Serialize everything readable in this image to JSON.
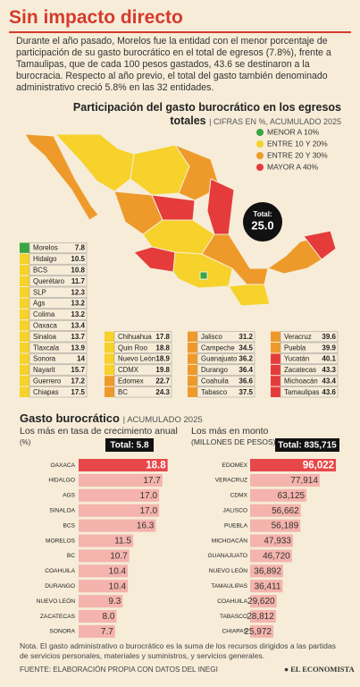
{
  "header": {
    "title": "Sin impacto directo",
    "text": "Durante el año pasado, Morelos fue la entidad con el menor porcentaje de participación de su gasto burocrático en el total de egresos (7.8%), frente a Tamaulipas, que de cada 100 pesos gastados, 43.6 se destinaron a la burocracia. Respecto al año previo, el total del gasto también denominado administrativo creció 5.8% en las 32 entidades."
  },
  "map": {
    "title": "Participación del gasto burocrático en los egresos totales",
    "subtitle": "CIFRAS EN %, ACUMULADO 2025",
    "legend": [
      {
        "label": "MENOR A 10%",
        "color": "#3aa544"
      },
      {
        "label": "ENTRE 10 Y 20%",
        "color": "#f6d22a"
      },
      {
        "label": "ENTRE 20 Y 30%",
        "color": "#ee9a2a"
      },
      {
        "label": "MAYOR A 40%",
        "color": "#e53b3b"
      }
    ],
    "total_label": "Total:",
    "total_value": {
      "value": 25,
      "label": "25.0"
    },
    "columns": [
      [
        {
          "name": "Morelos",
          "value": 7.8,
          "color": "#3aa544"
        },
        {
          "name": "Hidalgo",
          "value": 10.5,
          "color": "#f6d22a"
        },
        {
          "name": "BCS",
          "value": 10.8,
          "color": "#f6d22a"
        },
        {
          "name": "Querétaro",
          "value": 11.7,
          "color": "#f6d22a"
        },
        {
          "name": "SLP",
          "value": 12.3,
          "color": "#f6d22a"
        },
        {
          "name": "Ags",
          "value": 13.2,
          "color": "#f6d22a"
        },
        {
          "name": "Colima",
          "value": 13.2,
          "color": "#f6d22a"
        },
        {
          "name": "Oaxaca",
          "value": 13.4,
          "color": "#f6d22a"
        },
        {
          "name": "Sinaloa",
          "value": 13.7,
          "color": "#f6d22a"
        },
        {
          "name": "Tlaxcala",
          "value": 13.9,
          "color": "#f6d22a"
        },
        {
          "name": "Sonora",
          "value": 14,
          "color": "#f6d22a"
        },
        {
          "name": "Nayarit",
          "value": 15.7,
          "color": "#f6d22a"
        },
        {
          "name": "Guerrero",
          "value": 17.2,
          "color": "#f6d22a"
        },
        {
          "name": "Chiapas",
          "value": 17.5,
          "color": "#f6d22a"
        }
      ],
      [
        {
          "name": "Chihuahua",
          "value": 17.8,
          "color": "#f6d22a"
        },
        {
          "name": "Quin Roo",
          "value": 18.8,
          "color": "#f6d22a"
        },
        {
          "name": "Nuevo León",
          "value": 18.9,
          "color": "#f6d22a"
        },
        {
          "name": "CDMX",
          "value": 19.8,
          "color": "#f6d22a"
        },
        {
          "name": "Edomex",
          "value": 22.7,
          "color": "#ee9a2a"
        },
        {
          "name": "BC",
          "value": 24.3,
          "color": "#ee9a2a"
        }
      ],
      [
        {
          "name": "Jalisco",
          "value": 31.2,
          "color": "#ee9a2a"
        },
        {
          "name": "Campeche",
          "value": 34.5,
          "color": "#ee9a2a"
        },
        {
          "name": "Guanajuato",
          "value": 36.2,
          "color": "#ee9a2a"
        },
        {
          "name": "Durango",
          "value": 36.4,
          "color": "#ee9a2a"
        },
        {
          "name": "Coahuila",
          "value": 36.6,
          "color": "#ee9a2a"
        },
        {
          "name": "Tabasco",
          "value": 37.5,
          "color": "#ee9a2a"
        }
      ],
      [
        {
          "name": "Veracruz",
          "value": 39.6,
          "color": "#ee9a2a"
        },
        {
          "name": "Puebla",
          "value": 39.9,
          "color": "#ee9a2a"
        },
        {
          "name": "Yucatán",
          "value": 40.1,
          "color": "#e53b3b"
        },
        {
          "name": "Zacatecas",
          "value": 43.3,
          "color": "#e53b3b"
        },
        {
          "name": "Michoacán",
          "value": 43.4,
          "color": "#e53b3b"
        },
        {
          "name": "Tamaulipas",
          "value": 43.6,
          "color": "#e53b3b"
        }
      ]
    ]
  },
  "section": {
    "title": "Gasto burocrático",
    "subtitle": "ACUMULADO 2025"
  },
  "chart_data": [
    {
      "type": "bar",
      "title": "Los más en tasa de crecimiento anual",
      "unit": "(%)",
      "total": "Total: 5.8",
      "orientation": "horizontal",
      "categories": [
        "OAXACA",
        "HIDALGO",
        "AGS",
        "SINALOA",
        "BCS",
        "MORELOS",
        "BC",
        "COAHUILA",
        "DURANGO",
        "NUEVO LEÓN",
        "ZACATECAS",
        "SONORA"
      ],
      "values": [
        18.8,
        17.7,
        17.0,
        17.0,
        16.3,
        11.5,
        10.7,
        10.4,
        10.4,
        9.3,
        8.0,
        7.7
      ],
      "value_labels": [
        "18.8",
        "17.7",
        "17.0",
        "17.0",
        "16.3",
        "11.5",
        "10.7",
        "10.4",
        "10.4",
        "9.3",
        "8.0",
        "7.7"
      ],
      "colors": [
        "#e8474a",
        "#f4b3ac",
        "#f4b3ac",
        "#f4b3ac",
        "#f4b3ac",
        "#f4b3ac",
        "#f4b3ac",
        "#f4b3ac",
        "#f4b3ac",
        "#f4b3ac",
        "#f4b3ac",
        "#f4b3ac"
      ],
      "xlim": [
        0,
        20
      ]
    },
    {
      "type": "bar",
      "title": "Los más en monto",
      "unit": "(MILLONES DE PESOS)",
      "total": "Total: 835,715",
      "orientation": "horizontal",
      "categories": [
        "EDOMEX",
        "VERACRUZ",
        "CDMX",
        "JALISCO",
        "PUEBLA",
        "MICHOACÁN",
        "GUANAJUATO",
        "NUEVO LEÓN",
        "TAMAULIPAS",
        "COAHUILA",
        "TABASCO",
        "CHIAPAS"
      ],
      "values": [
        96022,
        77914,
        63125,
        56662,
        56189,
        47933,
        46720,
        36892,
        36411,
        29620,
        28812,
        25972
      ],
      "value_labels": [
        "96,022",
        "77,914",
        "63,125",
        "56,662",
        "56,189",
        "47,933",
        "46,720",
        "36,892",
        "36,411",
        "29,620",
        "28,812",
        "25,972"
      ],
      "colors": [
        "#e8474a",
        "#f4b3ac",
        "#f4b3ac",
        "#f4b3ac",
        "#f4b3ac",
        "#f4b3ac",
        "#f4b3ac",
        "#f4b3ac",
        "#f4b3ac",
        "#f4b3ac",
        "#f4b3ac",
        "#f4b3ac"
      ],
      "xlim": [
        0,
        100000
      ]
    }
  ],
  "footer": {
    "note": "Nota. El gasto administrativo o burocrático es la suma de los recursos dirigidos a las partidas de servicios personales, materiales y suministros, y servicios generales.",
    "source": "FUENTE: ELABORACIÓN PROPIA CON DATOS DEL INEGI",
    "brand": "EL ECONOMISTA"
  }
}
